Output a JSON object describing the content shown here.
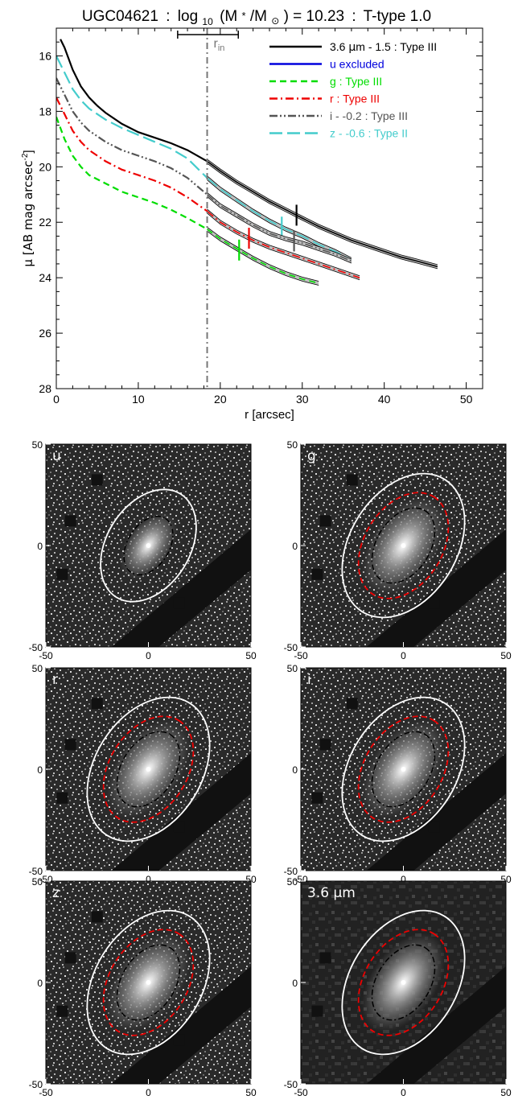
{
  "chart_data": [
    {
      "type": "line",
      "title_name": "UGC04621",
      "title_mass_label": "log",
      "title_mass_sub": "10",
      "title_mass_ratio": "(M",
      "title_mass_star": "*",
      "title_mass_slash": "/M",
      "title_mass_sun": "⊙",
      "title_mass_value": ") = 10.23",
      "title_ttype": "T-type 1.0",
      "title_sep": ":",
      "xlabel": "r [arcsec]",
      "ylabel_main": "μ [AB mag arcsec",
      "ylabel_sup": "-2",
      "ylabel_close": "]",
      "xlim": [
        0,
        52
      ],
      "ylim": [
        28,
        15
      ],
      "xticks": [
        "0",
        "10",
        "20",
        "30",
        "40",
        "50"
      ],
      "yticks": [
        "16",
        "18",
        "20",
        "22",
        "24",
        "26",
        "28"
      ],
      "rin_label": "r",
      "rin_sub": "in",
      "rin_value": 18.4,
      "rin_errbar": [
        14.8,
        22.2
      ],
      "legend_position": "top-right",
      "legend": [
        {
          "label_prefix": "3.6 ",
          "label_mu": "μ",
          "label_rest": "m - 1.5 : Type III",
          "color": "#000000",
          "dash": "solid"
        },
        {
          "label_prefix": "u excluded",
          "label_mu": "",
          "label_rest": "",
          "color": "#0000dd",
          "dash": "solid"
        },
        {
          "label_prefix": "g : Type III",
          "label_mu": "",
          "label_rest": "",
          "color": "#00dd00",
          "dash": "dash"
        },
        {
          "label_prefix": "r : Type III",
          "label_mu": "",
          "label_rest": "",
          "color": "#ee0000",
          "dash": "dashdot"
        },
        {
          "label_prefix": "i - -0.2 : Type III",
          "label_mu": "",
          "label_rest": "",
          "color": "#555555",
          "dash": "dashdotdot"
        },
        {
          "label_prefix": "z - -0.6 : Type II",
          "label_mu": "",
          "label_rest": "",
          "color": "#44cccc",
          "dash": "longdash"
        }
      ],
      "series": [
        {
          "band": "3.6",
          "color": "#000000",
          "dash": "solid",
          "break": 29.3,
          "x": [
            0.5,
            1,
            2,
            3,
            4,
            5,
            6,
            8,
            10,
            12,
            14,
            16,
            18.4,
            20,
            22,
            24,
            26,
            28,
            30,
            32,
            34,
            36,
            38,
            40,
            42,
            44,
            46.5
          ],
          "y": [
            15.4,
            15.7,
            16.5,
            17.1,
            17.5,
            17.8,
            18.05,
            18.45,
            18.75,
            18.95,
            19.15,
            19.4,
            19.8,
            20.15,
            20.55,
            20.9,
            21.25,
            21.55,
            21.85,
            22.15,
            22.4,
            22.65,
            22.85,
            23.05,
            23.25,
            23.4,
            23.6
          ]
        },
        {
          "band": "z",
          "color": "#44cccc",
          "dash": "longdash",
          "break": 27.5,
          "x": [
            0,
            1,
            2,
            3,
            4,
            6,
            8,
            10,
            12,
            14,
            16,
            18.4,
            20,
            22,
            24,
            26,
            28,
            30,
            32,
            34,
            36
          ],
          "y": [
            16.0,
            16.6,
            17.2,
            17.6,
            17.9,
            18.3,
            18.6,
            18.85,
            19.1,
            19.35,
            19.7,
            20.4,
            20.8,
            21.2,
            21.6,
            21.95,
            22.25,
            22.5,
            22.8,
            23.05,
            23.35
          ]
        },
        {
          "band": "i",
          "color": "#555555",
          "dash": "dashdotdot",
          "break": 29.0,
          "x": [
            0,
            1,
            2,
            3,
            4,
            6,
            8,
            10,
            12,
            14,
            16,
            18.4,
            20,
            22,
            24,
            26,
            28,
            30,
            32,
            34,
            36
          ],
          "y": [
            16.8,
            17.4,
            18.0,
            18.4,
            18.7,
            19.1,
            19.4,
            19.6,
            19.8,
            20.05,
            20.4,
            21.0,
            21.4,
            21.75,
            22.1,
            22.4,
            22.6,
            22.75,
            22.95,
            23.15,
            23.4
          ]
        },
        {
          "band": "r",
          "color": "#ee0000",
          "dash": "dashdot",
          "break": 23.5,
          "x": [
            0,
            1,
            2,
            3,
            4,
            6,
            8,
            10,
            12,
            14,
            16,
            18.4,
            20,
            22,
            24,
            26,
            28,
            30,
            32,
            34,
            36,
            37
          ],
          "y": [
            17.5,
            18.1,
            18.7,
            19.1,
            19.4,
            19.8,
            20.1,
            20.3,
            20.5,
            20.75,
            21.1,
            21.6,
            22.0,
            22.35,
            22.65,
            22.9,
            23.1,
            23.3,
            23.5,
            23.7,
            23.9,
            24.0
          ]
        },
        {
          "band": "g",
          "color": "#00dd00",
          "dash": "dash",
          "break": 22.3,
          "x": [
            0,
            1,
            2,
            3,
            4,
            6,
            8,
            10,
            12,
            14,
            16,
            18.4,
            20,
            22,
            24,
            26,
            28,
            30,
            32
          ],
          "y": [
            18.2,
            19.0,
            19.6,
            20.0,
            20.3,
            20.6,
            20.9,
            21.1,
            21.3,
            21.55,
            21.85,
            22.25,
            22.6,
            22.95,
            23.3,
            23.6,
            23.85,
            24.05,
            24.2
          ]
        }
      ]
    },
    {
      "type": "image_grid",
      "tick_labels_x": [
        "-50",
        "0",
        "50"
      ],
      "tick_labels_y": [
        "50",
        "0",
        "-50"
      ],
      "panels": [
        {
          "label": "u",
          "show_red_ellipse": false
        },
        {
          "label": "g",
          "show_red_ellipse": true
        },
        {
          "label": "r",
          "show_red_ellipse": true
        },
        {
          "label": "i",
          "show_red_ellipse": true
        },
        {
          "label": "z",
          "show_red_ellipse": true
        },
        {
          "label": "3.6 μm",
          "show_red_ellipse": true
        }
      ]
    }
  ]
}
